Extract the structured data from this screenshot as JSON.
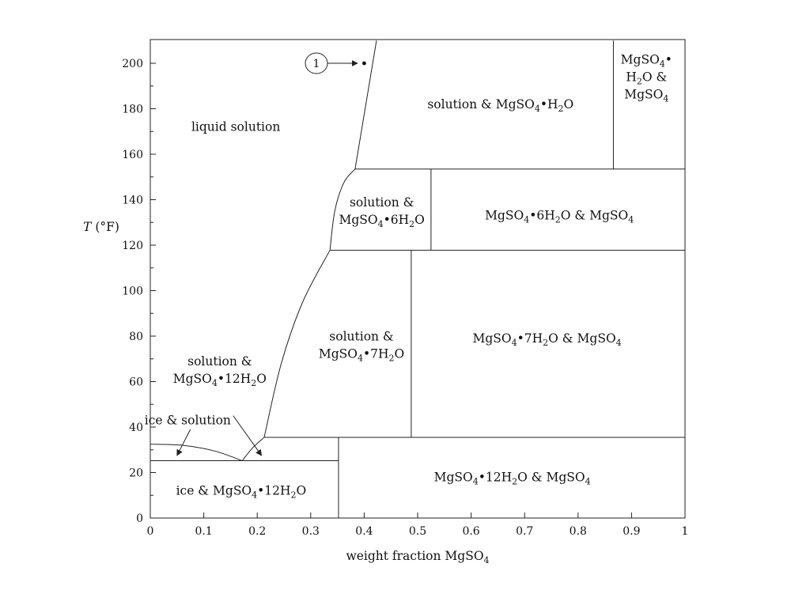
{
  "chart_data": {
    "type": "phase-diagram",
    "title": "",
    "xlabel": "weight fraction MgSO₄",
    "ylabel": "T (°F)",
    "xlim": [
      0,
      1
    ],
    "ylim": [
      0,
      210
    ],
    "x_ticks": [
      0,
      0.1,
      0.2,
      0.3,
      0.4,
      0.5,
      0.6,
      0.7,
      0.8,
      0.9,
      1
    ],
    "x_tick_labels": [
      "0",
      "0.1",
      "0.2",
      "0.3",
      "0.4",
      "0.5",
      "0.6",
      "0.7",
      "0.8",
      "0.9",
      "1"
    ],
    "y_ticks": [
      0,
      20,
      40,
      60,
      80,
      100,
      120,
      140,
      160,
      180,
      200
    ],
    "y_tick_labels": [
      "0",
      "20",
      "40",
      "60",
      "80",
      "100",
      "120",
      "140",
      "160",
      "180",
      "200"
    ],
    "grid": false,
    "boundaries": [
      {
        "name": "ice-liquidus",
        "kind": "curve",
        "points": [
          [
            0,
            32.5
          ],
          [
            0.06,
            32.0
          ],
          [
            0.12,
            29.5
          ],
          [
            0.172,
            25.2
          ]
        ]
      },
      {
        "name": "eutectic-line",
        "kind": "line",
        "points": [
          [
            0,
            25.2
          ],
          [
            0.352,
            25.2
          ]
        ]
      },
      {
        "name": "12H2O-liquidus",
        "kind": "curve",
        "points": [
          [
            0.172,
            25.2
          ],
          [
            0.19,
            30.5
          ],
          [
            0.213,
            35.5
          ]
        ]
      },
      {
        "name": "12H2O-7H2O-transition",
        "kind": "line",
        "points": [
          [
            0.213,
            35.5
          ],
          [
            1,
            35.5
          ]
        ]
      },
      {
        "name": "12H2O-divider",
        "kind": "line",
        "points": [
          [
            0.352,
            0
          ],
          [
            0.352,
            35.5
          ]
        ]
      },
      {
        "name": "7H2O-liquidus",
        "kind": "curve",
        "points": [
          [
            0.213,
            35.5
          ],
          [
            0.245,
            68
          ],
          [
            0.285,
            95
          ],
          [
            0.336,
            117.8
          ]
        ]
      },
      {
        "name": "7H2O-6H2O-transition",
        "kind": "line",
        "points": [
          [
            0.336,
            117.8
          ],
          [
            1,
            117.8
          ]
        ]
      },
      {
        "name": "7H2O-divider",
        "kind": "line",
        "points": [
          [
            0.488,
            35.5
          ],
          [
            0.488,
            117.8
          ]
        ]
      },
      {
        "name": "6H2O-liquidus",
        "kind": "curve",
        "points": [
          [
            0.336,
            117.8
          ],
          [
            0.345,
            135
          ],
          [
            0.362,
            147.5
          ],
          [
            0.383,
            153.5
          ]
        ]
      },
      {
        "name": "6H2O-H2O-transition",
        "kind": "line",
        "points": [
          [
            0.383,
            153.5
          ],
          [
            1,
            153.5
          ]
        ]
      },
      {
        "name": "6H2O-divider",
        "kind": "line",
        "points": [
          [
            0.525,
            117.8
          ],
          [
            0.525,
            153.5
          ]
        ]
      },
      {
        "name": "H2O-liquidus",
        "kind": "line",
        "points": [
          [
            0.383,
            153.5
          ],
          [
            0.423,
            210
          ]
        ]
      },
      {
        "name": "H2O-divider",
        "kind": "line",
        "points": [
          [
            0.866,
            153.5
          ],
          [
            0.866,
            210
          ]
        ]
      }
    ],
    "marked_point": {
      "label": "1",
      "x": 0.4,
      "y": 200
    },
    "regions": [
      {
        "label": [
          "liquid solution"
        ],
        "x": 0.16,
        "y": 172
      },
      {
        "label": [
          "solution & MgSO₄•H₂O"
        ],
        "x": 0.655,
        "y": 182
      },
      {
        "label": [
          "MgSO₄•",
          "H₂O &",
          "MgSO₄"
        ],
        "x": 0.928,
        "y": 194
      },
      {
        "label": [
          "solution &",
          "MgSO₄•6H₂O"
        ],
        "x": 0.433,
        "y": 135
      },
      {
        "label": [
          "MgSO₄•6H₂O & MgSO₄"
        ],
        "x": 0.765,
        "y": 133
      },
      {
        "label": [
          "solution &",
          "MgSO₄•7H₂O"
        ],
        "x": 0.395,
        "y": 76
      },
      {
        "label": [
          "MgSO₄•7H₂O & MgSO₄"
        ],
        "x": 0.742,
        "y": 79
      },
      {
        "label": [
          "solution &",
          "MgSO₄•12H₂O"
        ],
        "x": 0.13,
        "y": 65
      },
      {
        "label": [
          "ice & solution"
        ],
        "x": 0.07,
        "y": 43
      },
      {
        "label": [
          "ice & MgSO₄•12H₂O"
        ],
        "x": 0.17,
        "y": 12
      },
      {
        "label": [
          "MgSO₄•12H₂O & MgSO₄"
        ],
        "x": 0.677,
        "y": 18
      }
    ]
  }
}
